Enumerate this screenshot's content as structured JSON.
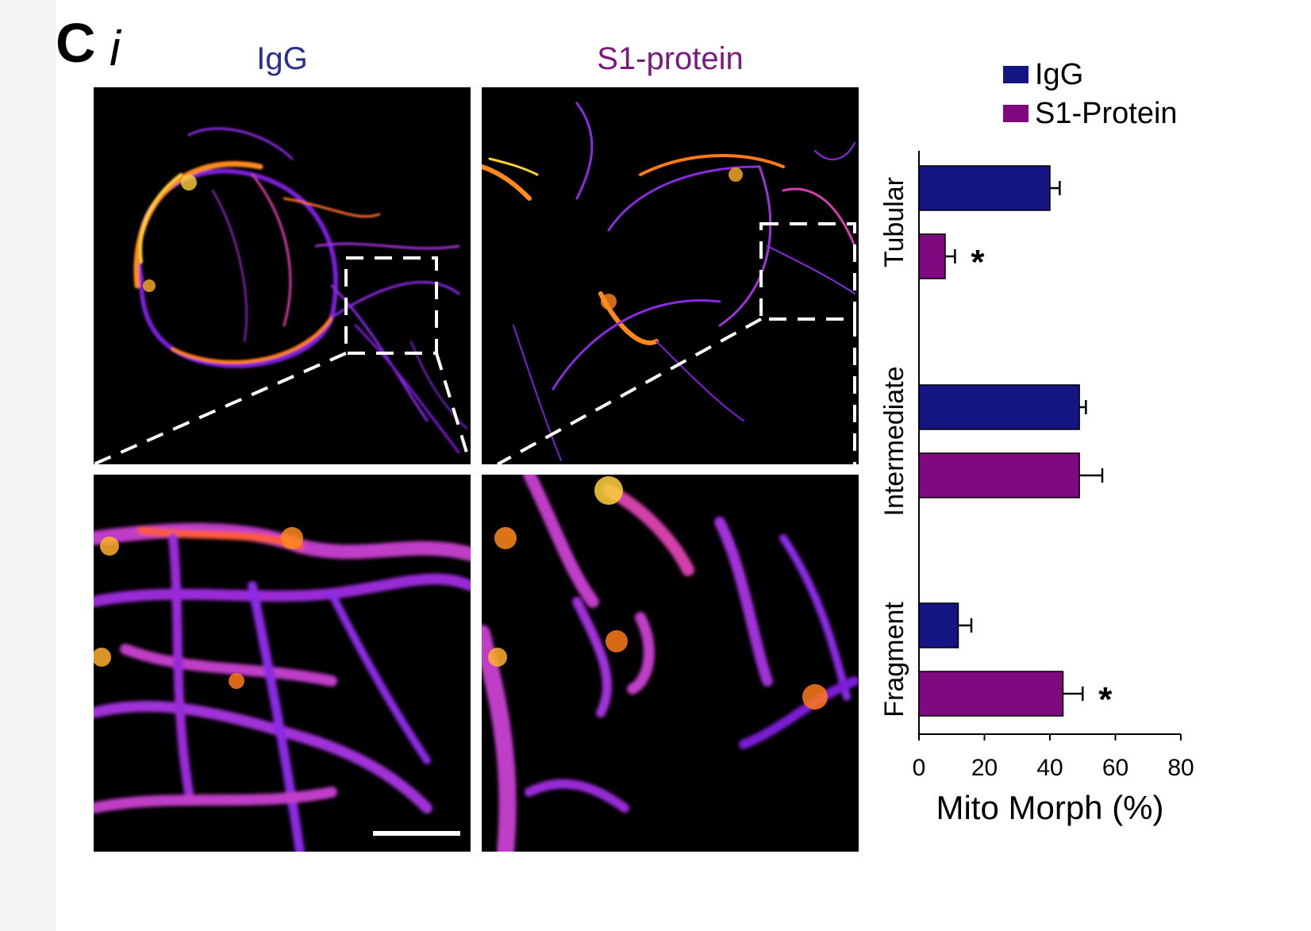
{
  "panel": {
    "letter": "C",
    "sub": "i"
  },
  "columns": {
    "left_title": "IgG",
    "right_title": "S1-protein",
    "left_color": "#2a2f8c",
    "right_color": "#7b1a7d"
  },
  "legend": [
    {
      "label": "IgG",
      "color": "#141482"
    },
    {
      "label": "S1-Protein",
      "color": "#7f0a7f"
    }
  ],
  "chart_data": {
    "type": "bar",
    "orientation": "horizontal",
    "categories": [
      "Tubular",
      "Intermediate",
      "Fragment"
    ],
    "series": [
      {
        "name": "IgG",
        "color": "#141482",
        "values": [
          40,
          49,
          12
        ],
        "errors": [
          3,
          2,
          4
        ]
      },
      {
        "name": "S1-Protein",
        "color": "#7f0a7f",
        "values": [
          8,
          49,
          44
        ],
        "errors": [
          3,
          7,
          6
        ]
      }
    ],
    "significance": [
      {
        "category": "Tubular",
        "series": "S1-Protein",
        "mark": "*"
      },
      {
        "category": "Fragment",
        "series": "S1-Protein",
        "mark": "*"
      }
    ],
    "xlim": [
      0,
      80
    ],
    "xticks": [
      "0",
      "20",
      "40",
      "60",
      "80"
    ],
    "xlabel": "Mito Morph (%)",
    "ylabel": ""
  }
}
